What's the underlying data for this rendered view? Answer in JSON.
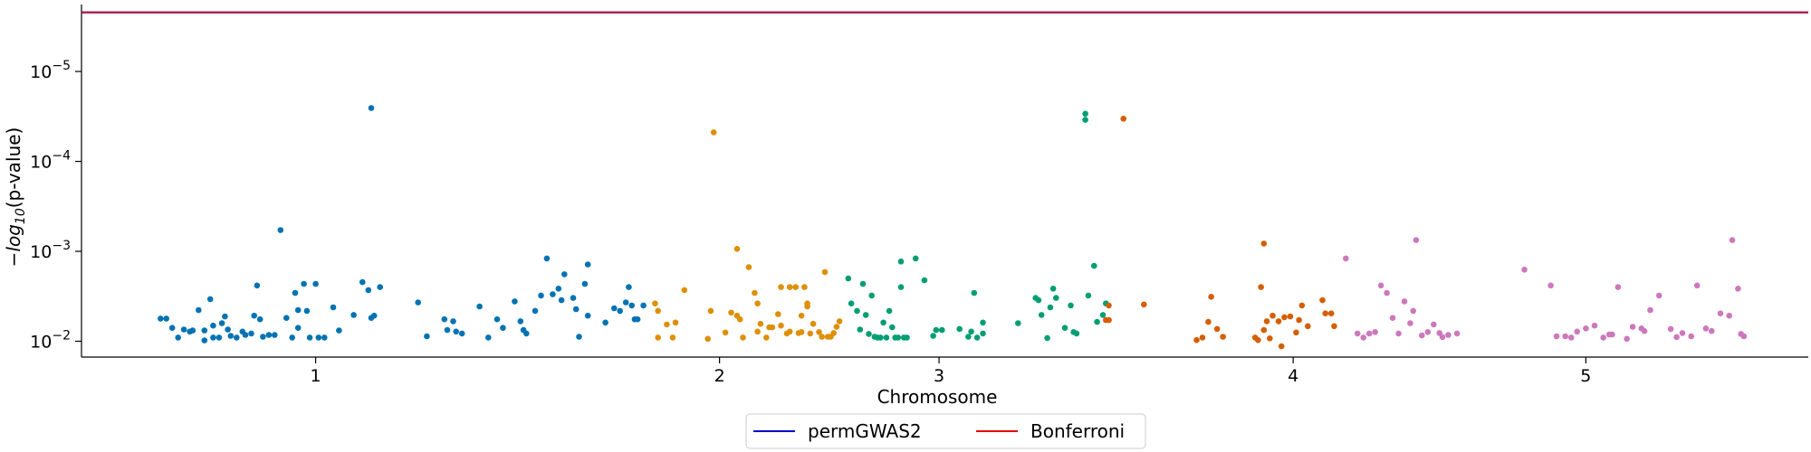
{
  "chart_data": {
    "type": "scatter",
    "title": "",
    "xlabel": "Chromosome",
    "ylabel": {
      "prefix": "−",
      "main": "log",
      "sub": "10",
      "suffix": "(p-value)"
    },
    "yscale": "log",
    "yaxis_inverted": true,
    "ylim": [
      0.015,
      1.8e-06
    ],
    "xlim": [
      0,
      5.9
    ],
    "y_ticks": [
      {
        "value": 1e-05,
        "base": "10",
        "exp": "−5"
      },
      {
        "value": 0.0001,
        "base": "10",
        "exp": "−4"
      },
      {
        "value": 0.001,
        "base": "10",
        "exp": "−3"
      },
      {
        "value": 0.01,
        "base": "10",
        "exp": "−2"
      }
    ],
    "x_ticks": [
      {
        "value": 0.8,
        "label": "1"
      },
      {
        "value": 2.18,
        "label": "2"
      },
      {
        "value": 2.93,
        "label": "3"
      },
      {
        "value": 4.14,
        "label": "4"
      },
      {
        "value": 5.14,
        "label": "5"
      }
    ],
    "grid": false,
    "legend": {
      "position": "bottom-center",
      "entries": [
        {
          "label": "permGWAS2",
          "color": "#0000cc"
        },
        {
          "label": "Bonferroni",
          "color": "#e00000"
        }
      ]
    },
    "threshold_lines": [
      {
        "name": "permGWAS2",
        "value": 2.2e-06,
        "color": "#0000cc"
      },
      {
        "name": "Bonferroni",
        "value": 2.2e-06,
        "color": "#e00000"
      }
    ],
    "colors": [
      "#0173b2",
      "#de8f05",
      "#029e73",
      "#d55e00",
      "#cc78bc"
    ],
    "series": [
      {
        "color": "#0173b2",
        "points": [
          [
            0.27,
            0.0056
          ],
          [
            0.29,
            0.0056
          ],
          [
            0.31,
            0.0071
          ],
          [
            0.33,
            0.0091
          ],
          [
            0.35,
            0.0074
          ],
          [
            0.37,
            0.0078
          ],
          [
            0.38,
            0.0076
          ],
          [
            0.4,
            0.0045
          ],
          [
            0.42,
            0.0098
          ],
          [
            0.42,
            0.0076
          ],
          [
            0.44,
            0.0034
          ],
          [
            0.45,
            0.0091
          ],
          [
            0.45,
            0.0067
          ],
          [
            0.47,
            0.0091
          ],
          [
            0.48,
            0.0063
          ],
          [
            0.49,
            0.0053
          ],
          [
            0.5,
            0.0074
          ],
          [
            0.51,
            0.0087
          ],
          [
            0.53,
            0.0091
          ],
          [
            0.55,
            0.0078
          ],
          [
            0.56,
            0.0085
          ],
          [
            0.58,
            0.0082
          ],
          [
            0.59,
            0.0052
          ],
          [
            0.6,
            0.0024
          ],
          [
            0.61,
            0.0057
          ],
          [
            0.62,
            0.0089
          ],
          [
            0.64,
            0.0085
          ],
          [
            0.66,
            0.0085
          ],
          [
            0.68,
            0.00058
          ],
          [
            0.7,
            0.0055
          ],
          [
            0.72,
            0.0091
          ],
          [
            0.73,
            0.0029
          ],
          [
            0.74,
            0.0045
          ],
          [
            0.74,
            0.0071
          ],
          [
            0.76,
            0.0023
          ],
          [
            0.77,
            0.0046
          ],
          [
            0.78,
            0.0091
          ],
          [
            0.8,
            0.0023
          ],
          [
            0.81,
            0.0091
          ],
          [
            0.83,
            0.0091
          ],
          [
            0.86,
            0.0042
          ],
          [
            0.88,
            0.0076
          ],
          [
            0.93,
            0.0051
          ],
          [
            0.96,
            0.0022
          ],
          [
            0.98,
            0.0027
          ],
          [
            0.99,
            2.55e-05
          ],
          [
            0.99,
            0.0055
          ],
          [
            1.0,
            0.0052
          ],
          [
            1.02,
            0.0025
          ],
          [
            1.15,
            0.0037
          ],
          [
            1.18,
            0.0088
          ],
          [
            1.24,
            0.0057
          ],
          [
            1.25,
            0.0075
          ],
          [
            1.27,
            0.006
          ],
          [
            1.28,
            0.0078
          ],
          [
            1.3,
            0.0082
          ],
          [
            1.36,
            0.0041
          ],
          [
            1.39,
            0.0091
          ],
          [
            1.42,
            0.0057
          ],
          [
            1.44,
            0.0071
          ],
          [
            1.48,
            0.0036
          ],
          [
            1.5,
            0.006
          ],
          [
            1.51,
            0.0075
          ],
          [
            1.52,
            0.0082
          ],
          [
            1.55,
            0.0046
          ],
          [
            1.57,
            0.0031
          ],
          [
            1.59,
            0.0012
          ],
          [
            1.61,
            0.003
          ],
          [
            1.63,
            0.0026
          ],
          [
            1.64,
            0.0035
          ],
          [
            1.65,
            0.0018
          ],
          [
            1.68,
            0.0033
          ],
          [
            1.69,
            0.0044
          ],
          [
            1.7,
            0.0089
          ],
          [
            1.72,
            0.0023
          ],
          [
            1.73,
            0.0052
          ],
          [
            1.73,
            0.0014
          ],
          [
            1.79,
            0.0062
          ],
          [
            1.82,
            0.0043
          ],
          [
            1.84,
            0.0046
          ],
          [
            1.86,
            0.0037
          ],
          [
            1.87,
            0.0025
          ],
          [
            1.88,
            0.004
          ],
          [
            1.89,
            0.0057
          ],
          [
            1.9,
            0.0057
          ],
          [
            1.92,
            0.004
          ]
        ]
      },
      {
        "color": "#de8f05",
        "points": [
          [
            1.96,
            0.0038
          ],
          [
            1.97,
            0.0046
          ],
          [
            1.97,
            0.0091
          ],
          [
            2.02,
            0.0091
          ],
          [
            2.03,
            0.0062
          ],
          [
            2.0,
            0.0065
          ],
          [
            2.06,
            0.0027
          ],
          [
            2.14,
            0.0094
          ],
          [
            2.15,
            0.0046
          ],
          [
            2.16,
            4.75e-05
          ],
          [
            2.2,
            0.008
          ],
          [
            2.22,
            0.0048
          ],
          [
            2.24,
            0.0052
          ],
          [
            2.25,
            0.0057
          ],
          [
            2.24,
            0.00094
          ],
          [
            2.26,
            0.0091
          ],
          [
            2.28,
            0.0015
          ],
          [
            2.3,
            0.0029
          ],
          [
            2.31,
            0.0078
          ],
          [
            2.31,
            0.0038
          ],
          [
            2.32,
            0.0064
          ],
          [
            2.34,
            0.0091
          ],
          [
            2.35,
            0.007
          ],
          [
            2.36,
            0.007
          ],
          [
            2.38,
            0.005
          ],
          [
            2.39,
            0.0067
          ],
          [
            2.39,
            0.0025
          ],
          [
            2.41,
            0.0082
          ],
          [
            2.42,
            0.0078
          ],
          [
            2.42,
            0.0025
          ],
          [
            2.44,
            0.0025
          ],
          [
            2.45,
            0.0081
          ],
          [
            2.46,
            0.0079
          ],
          [
            2.46,
            0.0052
          ],
          [
            2.47,
            0.0025
          ],
          [
            2.48,
            0.0038
          ],
          [
            2.48,
            0.0041
          ],
          [
            2.49,
            0.0082
          ],
          [
            2.5,
            0.0064
          ],
          [
            2.52,
            0.0079
          ],
          [
            2.53,
            0.0089
          ],
          [
            2.54,
            0.0017
          ],
          [
            2.55,
            0.0089
          ],
          [
            2.56,
            0.0089
          ],
          [
            2.57,
            0.0081
          ],
          [
            2.58,
            0.0069
          ],
          [
            2.59,
            0.006
          ]
        ]
      },
      {
        "color": "#029e73",
        "points": [
          [
            2.62,
            0.002
          ],
          [
            2.63,
            0.0038
          ],
          [
            2.65,
            0.0046
          ],
          [
            2.66,
            0.0074
          ],
          [
            2.67,
            0.0023
          ],
          [
            2.68,
            0.0051
          ],
          [
            2.69,
            0.0083
          ],
          [
            2.7,
            0.0031
          ],
          [
            2.71,
            0.0089
          ],
          [
            2.72,
            0.0091
          ],
          [
            2.73,
            0.0091
          ],
          [
            2.74,
            0.0062
          ],
          [
            2.75,
            0.0091
          ],
          [
            2.76,
            0.0046
          ],
          [
            2.77,
            0.007
          ],
          [
            2.78,
            0.0091
          ],
          [
            2.79,
            0.0091
          ],
          [
            2.8,
            0.0013
          ],
          [
            2.8,
            0.0025
          ],
          [
            2.81,
            0.0091
          ],
          [
            2.82,
            0.0091
          ],
          [
            2.85,
            0.0012
          ],
          [
            2.88,
            0.0021
          ],
          [
            2.91,
            0.0087
          ],
          [
            2.92,
            0.0075
          ],
          [
            2.94,
            0.0075
          ],
          [
            3.0,
            0.0073
          ],
          [
            3.03,
            0.0089
          ],
          [
            3.04,
            0.0078
          ],
          [
            3.05,
            0.0029
          ],
          [
            3.06,
            0.0091
          ],
          [
            3.08,
            0.0082
          ],
          [
            3.08,
            0.0062
          ],
          [
            3.2,
            0.0063
          ],
          [
            3.26,
            0.0033
          ],
          [
            3.27,
            0.0035
          ],
          [
            3.28,
            0.0051
          ],
          [
            3.3,
            0.0092
          ],
          [
            3.31,
            0.0042
          ],
          [
            3.32,
            0.0026
          ],
          [
            3.33,
            0.0033
          ],
          [
            3.36,
            0.0071
          ],
          [
            3.38,
            0.004
          ],
          [
            3.39,
            0.0079
          ],
          [
            3.4,
            0.0082
          ],
          [
            3.43,
            2.95e-05
          ],
          [
            3.43,
            3.45e-05
          ],
          [
            3.44,
            0.0031
          ],
          [
            3.46,
            0.00145
          ],
          [
            3.47,
            0.0061
          ],
          [
            3.49,
            0.0051
          ],
          [
            3.5,
            0.0038
          ]
        ]
      },
      {
        "color": "#d55e00",
        "points": [
          [
            3.5,
            0.0058
          ],
          [
            3.51,
            0.0058
          ],
          [
            3.51,
            0.004
          ],
          [
            3.51,
            0.0058
          ],
          [
            3.56,
            3.35e-05
          ],
          [
            3.63,
            0.0039
          ],
          [
            3.81,
            0.0097
          ],
          [
            3.83,
            0.0091
          ],
          [
            3.85,
            0.0061
          ],
          [
            3.86,
            0.0032
          ],
          [
            3.88,
            0.0073
          ],
          [
            3.9,
            0.0089
          ],
          [
            4.01,
            0.0091
          ],
          [
            4.02,
            0.0097
          ],
          [
            4.03,
            0.0025
          ],
          [
            4.04,
            0.00082
          ],
          [
            4.04,
            0.0075
          ],
          [
            4.05,
            0.006
          ],
          [
            4.06,
            0.0093
          ],
          [
            4.07,
            0.0052
          ],
          [
            4.09,
            0.006
          ],
          [
            4.1,
            0.0114
          ],
          [
            4.11,
            0.0054
          ],
          [
            4.13,
            0.0053
          ],
          [
            4.15,
            0.008
          ],
          [
            4.16,
            0.0058
          ],
          [
            4.17,
            0.004
          ],
          [
            4.19,
            0.0068
          ],
          [
            4.24,
            0.0035
          ],
          [
            4.25,
            0.0049
          ],
          [
            4.27,
            0.0049
          ],
          [
            4.28,
            0.0068
          ]
        ]
      },
      {
        "color": "#cc78bc",
        "points": [
          [
            4.32,
            0.0012
          ],
          [
            4.36,
            0.0082
          ],
          [
            4.38,
            0.0091
          ],
          [
            4.4,
            0.0082
          ],
          [
            4.42,
            0.0079
          ],
          [
            4.44,
            0.0024
          ],
          [
            4.46,
            0.0029
          ],
          [
            4.48,
            0.0055
          ],
          [
            4.5,
            0.0082
          ],
          [
            4.52,
            0.0036
          ],
          [
            4.54,
            0.0063
          ],
          [
            4.55,
            0.0046
          ],
          [
            4.56,
            0.00075
          ],
          [
            4.58,
            0.0086
          ],
          [
            4.6,
            0.0079
          ],
          [
            4.62,
            0.0065
          ],
          [
            4.64,
            0.0081
          ],
          [
            4.65,
            0.009
          ],
          [
            4.67,
            0.0085
          ],
          [
            4.7,
            0.0082
          ],
          [
            4.93,
            0.0016
          ],
          [
            5.02,
            0.0024
          ],
          [
            5.04,
            0.0088
          ],
          [
            5.07,
            0.0088
          ],
          [
            5.09,
            0.0091
          ],
          [
            5.11,
            0.0078
          ],
          [
            5.14,
            0.0072
          ],
          [
            5.17,
            0.0067
          ],
          [
            5.2,
            0.0091
          ],
          [
            5.22,
            0.0084
          ],
          [
            5.23,
            0.0084
          ],
          [
            5.25,
            0.0025
          ],
          [
            5.28,
            0.0094
          ],
          [
            5.3,
            0.0069
          ],
          [
            5.33,
            0.0072
          ],
          [
            5.34,
            0.0077
          ],
          [
            5.36,
            0.0045
          ],
          [
            5.39,
            0.0031
          ],
          [
            5.43,
            0.0073
          ],
          [
            5.45,
            0.009
          ],
          [
            5.47,
            0.0081
          ],
          [
            5.5,
            0.0088
          ],
          [
            5.52,
            0.0024
          ],
          [
            5.55,
            0.0072
          ],
          [
            5.57,
            0.0077
          ],
          [
            5.6,
            0.0049
          ],
          [
            5.63,
            0.0052
          ],
          [
            5.64,
            0.00075
          ],
          [
            5.66,
            0.0026
          ],
          [
            5.67,
            0.0083
          ],
          [
            5.68,
            0.0088
          ]
        ]
      }
    ]
  }
}
